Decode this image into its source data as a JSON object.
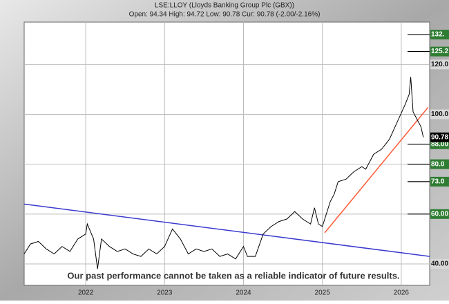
{
  "chart_data": {
    "type": "line",
    "title": "LSE:LLOY (Lloyds Banking Group Plc (GBX))",
    "subtitle": "Open: 94.34 High: 94.72 Low: 90.78 Cur: 90.78 (-2.00/-2.16%)",
    "annotation": "Our past performance cannot be taken as a reliable indicator of future results.",
    "x": [
      2021.22,
      2021.3,
      2021.4,
      2021.5,
      2021.6,
      2021.7,
      2021.8,
      2021.9,
      2022.0,
      2022.02,
      2022.1,
      2022.15,
      2022.2,
      2022.3,
      2022.4,
      2022.5,
      2022.6,
      2022.7,
      2022.8,
      2022.9,
      2023.0,
      2023.1,
      2023.2,
      2023.3,
      2023.4,
      2023.5,
      2023.6,
      2023.7,
      2023.8,
      2023.9,
      2024.0,
      2024.05,
      2024.15,
      2024.25,
      2024.35,
      2024.45,
      2024.55,
      2024.65,
      2024.75,
      2024.85,
      2024.9,
      2024.95,
      2025.0,
      2025.05,
      2025.1,
      2025.15,
      2025.2,
      2025.3,
      2025.4,
      2025.5,
      2025.55,
      2025.65,
      2025.75,
      2025.85,
      2025.95,
      2026.05,
      2026.1,
      2026.12,
      2026.15,
      2026.2,
      2026.25,
      2026.28
    ],
    "series": [
      {
        "color": "#000000",
        "values": [
          44,
          48,
          49,
          46,
          44,
          47,
          45,
          50,
          52,
          56,
          50,
          38,
          50,
          47,
          45,
          46,
          44,
          43,
          46,
          44,
          47,
          54,
          50,
          44,
          46,
          45,
          46,
          43,
          44,
          42,
          47,
          43,
          43,
          52,
          55,
          57,
          58,
          61,
          58,
          56,
          62.5,
          56,
          55,
          60,
          65,
          68,
          73,
          74,
          77,
          79,
          78,
          84,
          86,
          90,
          97,
          104,
          108,
          115,
          101,
          98,
          95,
          90.78
        ]
      }
    ],
    "trend_lines": [
      {
        "color": "#3a3ad0",
        "x": [
          2021.22,
          2026.36
        ],
        "values": [
          64,
          43
        ]
      },
      {
        "color": "#ff5a36",
        "x": [
          2025.03,
          2026.34
        ],
        "values": [
          52.5,
          102.8
        ]
      }
    ],
    "xlim": [
      2021.22,
      2026.36
    ],
    "xticks": [
      2022,
      2023,
      2024,
      2025,
      2026
    ],
    "ylim": [
      31.4,
      137
    ],
    "yticks": [
      {
        "value": 40,
        "label": "40.00"
      },
      {
        "value": 100,
        "label": "100.0"
      },
      {
        "value": 120,
        "label": "120.0"
      }
    ],
    "levels": [
      {
        "value": 132,
        "label": "132.",
        "grid": false
      },
      {
        "value": 125.2,
        "label": "125.2",
        "grid": false
      },
      {
        "value": 88,
        "label": "88.00",
        "grid": false
      },
      {
        "value": 80,
        "label": "80.0",
        "grid": true
      },
      {
        "value": 73,
        "label": "73.0",
        "grid": false
      },
      {
        "value": 60,
        "label": "60.00",
        "grid": true
      }
    ],
    "current": {
      "value": 90.78,
      "label": "90.78"
    },
    "grid": true
  }
}
